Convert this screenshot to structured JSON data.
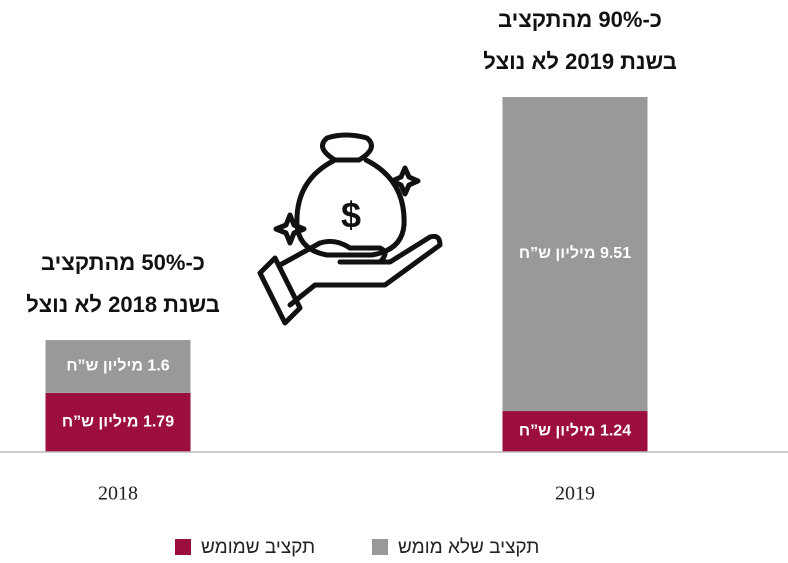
{
  "chart_data": {
    "type": "stacked_bar",
    "categories": [
      "2018",
      "2019"
    ],
    "series": [
      {
        "name": "תקציב שמומש",
        "color": "#9b0e3e",
        "values": [
          1.79,
          1.24
        ],
        "value_labels": [
          "1.79 מיליון ש”ח",
          "1.24 מיליון ש”ח"
        ]
      },
      {
        "name": "תקציב שלא מומש",
        "color": "#999999",
        "values": [
          1.6,
          9.51
        ],
        "value_labels": [
          "1.6 מיליון ש”ח",
          "9.51 מיליון ש”ח"
        ]
      }
    ],
    "annotations": [
      [
        "כ-50% מהתקציב",
        "בשנת 2018 לא נוצל"
      ],
      [
        "כ-90% מהתקציב",
        "בשנת 2019 לא נוצל"
      ]
    ]
  }
}
